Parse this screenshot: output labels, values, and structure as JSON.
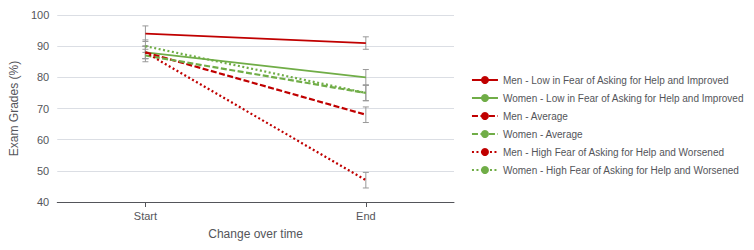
{
  "chart_data": {
    "type": "line",
    "xlabel": "Change over time",
    "ylabel": "Exam Grades (%)",
    "x": [
      1,
      2
    ],
    "xlim": [
      0.6,
      2.4
    ],
    "xticks": [
      {
        "value": 1,
        "label": "Start"
      },
      {
        "value": 2,
        "label": "End"
      }
    ],
    "ylim": [
      40,
      100
    ],
    "yticks": [
      40,
      50,
      60,
      70,
      80,
      90,
      100
    ],
    "grid": true,
    "legend": "right",
    "series": [
      {
        "name": "Men - Low in Fear of Asking for Help and Improved",
        "color": "#c00000",
        "line_style": "solid",
        "values": [
          94,
          91
        ],
        "yerr": [
          2.5,
          2.0
        ]
      },
      {
        "name": "Women - Low in Fear of Asking for Help and Improved",
        "color": "#70ad47",
        "line_style": "solid",
        "values": [
          88,
          80
        ],
        "yerr": [
          2.0,
          2.5
        ]
      },
      {
        "name": "Men - Average",
        "color": "#c00000",
        "line_style": "dashed",
        "values": [
          88,
          68
        ],
        "yerr": [
          2.0,
          2.5
        ]
      },
      {
        "name": "Women - Average",
        "color": "#70ad47",
        "line_style": "dashed",
        "values": [
          87,
          75
        ],
        "yerr": [
          2.0,
          2.5
        ]
      },
      {
        "name": "Men - High Fear of Asking for Help and Worsened",
        "color": "#c00000",
        "line_style": "dotted",
        "values": [
          88,
          47
        ],
        "yerr": [
          2.0,
          2.5
        ]
      },
      {
        "name": "Women - High Fear of Asking for Help and Worsened",
        "color": "#70ad47",
        "line_style": "dotted",
        "values": [
          90,
          75
        ],
        "yerr": [
          2.0,
          2.5
        ]
      }
    ]
  }
}
